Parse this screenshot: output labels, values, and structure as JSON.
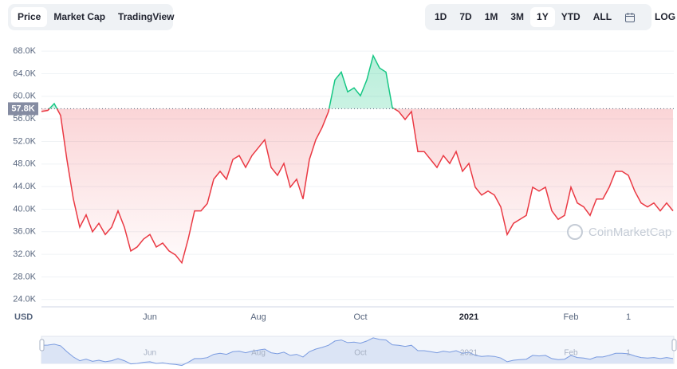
{
  "tabs": [
    "Price",
    "Market Cap",
    "TradingView"
  ],
  "ranges": [
    "1D",
    "7D",
    "1M",
    "3M",
    "1Y",
    "YTD",
    "ALL"
  ],
  "log_button": "LOG",
  "chart_data": {
    "type": "line",
    "color": "#ea3943",
    "color_above": "#16c784",
    "reference_line": {
      "value": 57800,
      "label": "57.8K"
    },
    "unit_label": "USD",
    "watermark": "CoinMarketCap",
    "ylim": [
      22700,
      70000
    ],
    "yticks": [
      {
        "value": 24000,
        "label": "24.0K"
      },
      {
        "value": 28000,
        "label": "28.0K"
      },
      {
        "value": 32000,
        "label": "32.0K"
      },
      {
        "value": 36000,
        "label": "36.0K"
      },
      {
        "value": 40000,
        "label": "40.0K"
      },
      {
        "value": 44000,
        "label": "44.0K"
      },
      {
        "value": 48000,
        "label": "48.0K"
      },
      {
        "value": 52000,
        "label": "52.0K"
      },
      {
        "value": 56000,
        "label": "56.0K"
      },
      {
        "value": 60000,
        "label": "60.0K"
      },
      {
        "value": 64000,
        "label": "64.0K"
      },
      {
        "value": 68000,
        "label": "68.0K"
      }
    ],
    "grid": true,
    "categories": [
      null,
      null,
      null,
      null,
      null,
      null,
      null,
      null,
      null,
      null,
      null,
      null,
      null,
      null,
      null,
      null,
      null,
      "Jun",
      null,
      null,
      null,
      null,
      null,
      null,
      null,
      null,
      null,
      null,
      null,
      null,
      null,
      null,
      null,
      null,
      "Aug",
      null,
      null,
      null,
      null,
      null,
      null,
      null,
      null,
      null,
      null,
      null,
      null,
      null,
      null,
      null,
      "Oct",
      null,
      null,
      null,
      null,
      null,
      null,
      null,
      null,
      null,
      null,
      null,
      null,
      null,
      null,
      null,
      null,
      "2021",
      null,
      null,
      null,
      null,
      null,
      null,
      null,
      null,
      null,
      null,
      null,
      null,
      null,
      null,
      null,
      "Feb",
      null,
      null,
      null,
      null,
      null,
      null,
      null,
      null,
      "1",
      null,
      null,
      null,
      null,
      null,
      null,
      null
    ],
    "values": [
      57300,
      57500,
      58700,
      56600,
      48700,
      41800,
      36800,
      39000,
      36000,
      37500,
      35500,
      36800,
      39700,
      36800,
      32600,
      33300,
      34700,
      35500,
      33300,
      34000,
      32600,
      31900,
      30500,
      34700,
      39700,
      39700,
      41000,
      45300,
      46700,
      45300,
      48800,
      49500,
      47400,
      49500,
      50900,
      52300,
      47400,
      46000,
      48100,
      43900,
      45300,
      41800,
      48800,
      52300,
      54500,
      57300,
      62900,
      64300,
      60800,
      61500,
      60100,
      62900,
      67200,
      65000,
      64300,
      58000,
      57300,
      55900,
      57300,
      50200,
      50200,
      48800,
      47400,
      49500,
      48100,
      50200,
      46700,
      48100,
      43900,
      42500,
      43200,
      42500,
      40400,
      35500,
      37500,
      38200,
      38900,
      43900,
      43200,
      43900,
      39700,
      38200,
      38900,
      43900,
      41100,
      40400,
      38900,
      41800,
      41800,
      43900,
      46700,
      46700,
      46000,
      43200,
      41100,
      40400,
      41100,
      39700,
      41100,
      39700
    ]
  }
}
